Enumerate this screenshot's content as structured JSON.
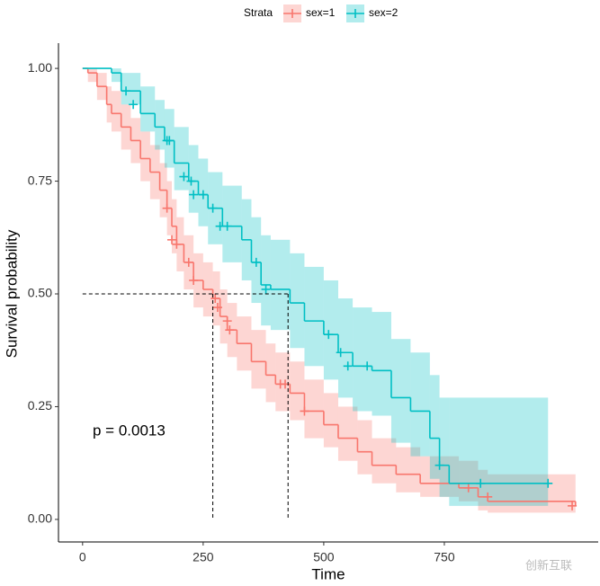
{
  "chart_data": {
    "type": "survival",
    "x_label": "Time",
    "y_label": "Survival probability",
    "legend_title": "Strata",
    "legend_position": "top",
    "annotation": "p = 0.0013",
    "watermark": "创新互联",
    "xlim": [
      -50,
      1069
    ],
    "ylim": [
      -0.05,
      1.056
    ],
    "xticks": [
      0,
      250,
      500,
      750
    ],
    "yticks": [
      {
        "value": 0,
        "label": "0.00"
      },
      {
        "value": 0.25,
        "label": "0.25"
      },
      {
        "value": 0.5,
        "label": "0.50"
      },
      {
        "value": 0.75,
        "label": "0.75"
      },
      {
        "value": 1,
        "label": "1.00"
      }
    ],
    "median": {
      "y": 0.5,
      "x": [
        270,
        426
      ]
    },
    "series": [
      {
        "name": "sex=1",
        "color": "#F8766D",
        "x": [
          0,
          11,
          30,
          50,
          60,
          80,
          100,
          120,
          140,
          160,
          175,
          185,
          195,
          210,
          230,
          250,
          270,
          285,
          300,
          320,
          350,
          380,
          400,
          430,
          460,
          500,
          530,
          570,
          600,
          650,
          700,
          780,
          820,
          840,
          1022
        ],
        "values": [
          1,
          0.99,
          0.96,
          0.92,
          0.9,
          0.87,
          0.84,
          0.8,
          0.77,
          0.73,
          0.69,
          0.65,
          0.61,
          0.57,
          0.53,
          0.51,
          0.49,
          0.45,
          0.42,
          0.39,
          0.35,
          0.32,
          0.3,
          0.28,
          0.24,
          0.21,
          0.18,
          0.15,
          0.12,
          0.1,
          0.08,
          0.07,
          0.05,
          0.04,
          0.03
        ],
        "lower": [
          1,
          0.97,
          0.93,
          0.88,
          0.86,
          0.82,
          0.79,
          0.75,
          0.71,
          0.67,
          0.63,
          0.59,
          0.55,
          0.51,
          0.47,
          0.45,
          0.43,
          0.39,
          0.36,
          0.33,
          0.29,
          0.26,
          0.24,
          0.22,
          0.18,
          0.16,
          0.13,
          0.1,
          0.08,
          0.06,
          0.05,
          0.04,
          0.02,
          0.015,
          0.01
        ],
        "upper": [
          1,
          1,
          0.99,
          0.96,
          0.95,
          0.92,
          0.89,
          0.86,
          0.83,
          0.79,
          0.75,
          0.71,
          0.67,
          0.63,
          0.59,
          0.57,
          0.55,
          0.51,
          0.48,
          0.45,
          0.42,
          0.39,
          0.37,
          0.35,
          0.31,
          0.28,
          0.25,
          0.22,
          0.18,
          0.16,
          0.14,
          0.13,
          0.11,
          0.1,
          0.12
        ],
        "censor_x": [
          175,
          185,
          195,
          220,
          230,
          275,
          280,
          300,
          305,
          410,
          420,
          460,
          800,
          840,
          1015
        ],
        "censor_y": [
          0.69,
          0.62,
          0.61,
          0.57,
          0.53,
          0.49,
          0.47,
          0.44,
          0.42,
          0.3,
          0.3,
          0.24,
          0.07,
          0.05,
          0.03
        ]
      },
      {
        "name": "sex=2",
        "color": "#00BFC4",
        "x": [
          0,
          60,
          80,
          120,
          150,
          170,
          190,
          220,
          240,
          260,
          290,
          330,
          350,
          370,
          390,
          430,
          460,
          500,
          530,
          560,
          600,
          640,
          680,
          720,
          740,
          760,
          965
        ],
        "values": [
          1,
          0.99,
          0.95,
          0.9,
          0.87,
          0.84,
          0.79,
          0.75,
          0.72,
          0.69,
          0.65,
          0.62,
          0.57,
          0.52,
          0.51,
          0.48,
          0.44,
          0.41,
          0.37,
          0.34,
          0.33,
          0.27,
          0.24,
          0.18,
          0.12,
          0.08,
          0.08
        ],
        "lower": [
          1,
          0.97,
          0.92,
          0.86,
          0.82,
          0.78,
          0.73,
          0.68,
          0.65,
          0.61,
          0.57,
          0.53,
          0.48,
          0.43,
          0.42,
          0.38,
          0.34,
          0.31,
          0.27,
          0.24,
          0.23,
          0.17,
          0.14,
          0.09,
          0.05,
          0.03,
          0.03
        ],
        "upper": [
          1,
          1,
          0.99,
          0.96,
          0.93,
          0.91,
          0.87,
          0.83,
          0.8,
          0.77,
          0.74,
          0.71,
          0.67,
          0.63,
          0.62,
          0.59,
          0.56,
          0.53,
          0.49,
          0.47,
          0.46,
          0.4,
          0.37,
          0.32,
          0.27,
          0.27,
          0.27
        ],
        "censor_x": [
          90,
          105,
          175,
          180,
          210,
          225,
          230,
          250,
          270,
          285,
          300,
          360,
          380,
          510,
          535,
          550,
          590,
          740,
          825,
          965
        ],
        "censor_y": [
          0.95,
          0.92,
          0.84,
          0.84,
          0.76,
          0.75,
          0.72,
          0.72,
          0.69,
          0.65,
          0.65,
          0.57,
          0.51,
          0.41,
          0.37,
          0.34,
          0.34,
          0.12,
          0.08,
          0.08
        ]
      }
    ]
  }
}
